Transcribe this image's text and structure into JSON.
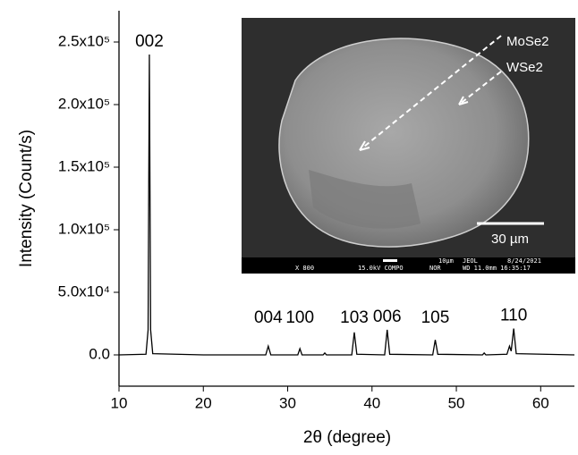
{
  "chart_data": {
    "type": "line",
    "x_label": "2θ (degree)",
    "y_label": "Intensity (Count/s)",
    "x": [
      10,
      13.2,
      13.45,
      13.6,
      13.75,
      14.0,
      20,
      27.4,
      27.7,
      28.0,
      31.2,
      31.45,
      31.7,
      34.2,
      34.4,
      34.6,
      37.6,
      37.9,
      38.2,
      41.5,
      41.8,
      42.1,
      47.2,
      47.5,
      47.8,
      53.1,
      53.3,
      53.5,
      56.0,
      56.3,
      56.5,
      56.8,
      57.1,
      64
    ],
    "values": [
      0,
      500,
      20000,
      240000,
      20000,
      1000,
      0,
      0,
      7000,
      0,
      0,
      5000,
      0,
      0,
      1500,
      0,
      0,
      18000,
      500,
      0,
      20000,
      500,
      0,
      12000,
      500,
      0,
      1500,
      0,
      500,
      7000,
      3000,
      21000,
      1000,
      0
    ],
    "color": "#000000",
    "xlim": [
      10,
      64
    ],
    "ylim": [
      -25000,
      275000
    ],
    "xticks": [
      10,
      20,
      30,
      40,
      50,
      60
    ],
    "yticks": [
      {
        "value": 0,
        "label": "0.0"
      },
      {
        "value": 50000,
        "label": "5.0x10⁴"
      },
      {
        "value": 100000,
        "label": "1.0x10⁵"
      },
      {
        "value": 150000,
        "label": "1.5x10⁵"
      },
      {
        "value": 200000,
        "label": "2.0x10⁵"
      },
      {
        "value": 250000,
        "label": "2.5x10⁵"
      }
    ],
    "annotations": [
      {
        "text": "002",
        "x": 13.6
      },
      {
        "text": "004",
        "x": 27.7
      },
      {
        "text": "100",
        "x": 31.45
      },
      {
        "text": "103",
        "x": 37.9
      },
      {
        "text": "006",
        "x": 41.8
      },
      {
        "text": "105",
        "x": 47.5
      },
      {
        "text": "110",
        "x": 56.8
      }
    ],
    "inset": {
      "label_top": "MoSe2",
      "label_bottom": "WSe2",
      "scale_bar": "30 µm",
      "footer_left": "X 800",
      "footer_mid": "15.0kV COMPO",
      "footer_nor": "NOR",
      "footer_right": "WD 11.0mm 16:35:17",
      "footer_scale": "10µm",
      "footer_brand": "JEOL",
      "footer_date": "8/24/2021"
    }
  }
}
